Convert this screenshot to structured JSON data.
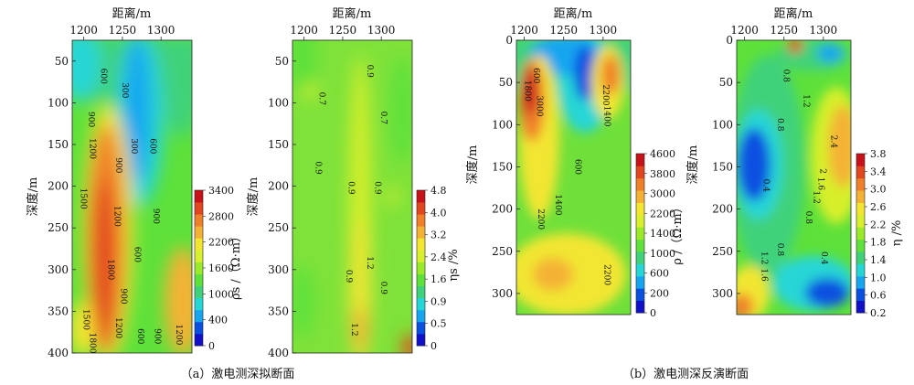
{
  "colormap": [
    "#1010c8",
    "#0a50e0",
    "#16a6f0",
    "#25d6d6",
    "#3fd27a",
    "#5ee13a",
    "#9bea2a",
    "#d7ef2c",
    "#f2e632",
    "#f4b234",
    "#f07f2a",
    "#e2461f",
    "#c8121a"
  ],
  "captions": {
    "a": "（a）激电测深拟断面",
    "b": "（b）激电测深反演断面"
  },
  "chart_data": [
    {
      "id": "a-rho",
      "type": "heatmap",
      "title": "",
      "xlabel": "距离/m",
      "ylabel": "深度/m",
      "x_ticks": [
        1200,
        1250,
        1300
      ],
      "xlim": [
        1185,
        1340
      ],
      "y_ticks": [
        50,
        100,
        150,
        200,
        250,
        300,
        350,
        400
      ],
      "ylim": [
        400,
        25
      ],
      "colorbar": {
        "label": "ρs /（Ω·m）",
        "ticks": [
          "0",
          "400",
          "1000",
          "1600",
          "2200",
          "2800",
          "3400"
        ],
        "range": [
          0,
          3400
        ]
      },
      "contour_labels": [
        {
          "text": "600",
          "x": 1222,
          "y": 68
        },
        {
          "text": "300",
          "x": 1250,
          "y": 85
        },
        {
          "text": "900",
          "x": 1206,
          "y": 120
        },
        {
          "text": "1200",
          "x": 1208,
          "y": 155
        },
        {
          "text": "300",
          "x": 1262,
          "y": 152
        },
        {
          "text": "600",
          "x": 1286,
          "y": 152
        },
        {
          "text": "900",
          "x": 1242,
          "y": 175
        },
        {
          "text": "1500",
          "x": 1196,
          "y": 215
        },
        {
          "text": "1200",
          "x": 1240,
          "y": 236
        },
        {
          "text": "900",
          "x": 1290,
          "y": 236
        },
        {
          "text": "600",
          "x": 1266,
          "y": 282
        },
        {
          "text": "1800",
          "x": 1232,
          "y": 300
        },
        {
          "text": "900",
          "x": 1248,
          "y": 332
        },
        {
          "text": "1500",
          "x": 1200,
          "y": 360
        },
        {
          "text": "1200",
          "x": 1242,
          "y": 370
        },
        {
          "text": "1800",
          "x": 1208,
          "y": 388
        },
        {
          "text": "600",
          "x": 1270,
          "y": 380
        },
        {
          "text": "900",
          "x": 1292,
          "y": 380
        },
        {
          "text": "1200",
          "x": 1320,
          "y": 378
        }
      ]
    },
    {
      "id": "a-eta",
      "type": "heatmap",
      "title": "",
      "xlabel": "距离/m",
      "ylabel": "深度/m",
      "x_ticks": [
        1200,
        1250,
        1300
      ],
      "xlim": [
        1185,
        1340
      ],
      "y_ticks": [
        50,
        100,
        150,
        200,
        250,
        300,
        350,
        400
      ],
      "ylim": [
        400,
        25
      ],
      "colorbar": {
        "label": "ηs /%",
        "ticks": [
          "0",
          "0.5",
          "0.9",
          "1.6",
          "2.4",
          "3.2",
          "4.0",
          "4.8"
        ],
        "range": [
          0,
          4.8
        ]
      },
      "contour_labels": [
        {
          "text": "0.9",
          "x": 1282,
          "y": 62
        },
        {
          "text": "0.7",
          "x": 1220,
          "y": 95
        },
        {
          "text": "0.7",
          "x": 1300,
          "y": 118
        },
        {
          "text": "0.9",
          "x": 1215,
          "y": 178
        },
        {
          "text": "0.9",
          "x": 1258,
          "y": 202
        },
        {
          "text": "0.9",
          "x": 1292,
          "y": 202
        },
        {
          "text": "1.2",
          "x": 1282,
          "y": 292
        },
        {
          "text": "0.9",
          "x": 1255,
          "y": 308
        },
        {
          "text": "0.9",
          "x": 1300,
          "y": 322
        },
        {
          "text": "1.2",
          "x": 1262,
          "y": 372
        }
      ]
    },
    {
      "id": "b-rho",
      "type": "heatmap",
      "title": "",
      "xlabel": "距离/m",
      "ylabel": "深度/m",
      "x_ticks": [
        1200,
        1250,
        1300
      ],
      "xlim": [
        1190,
        1335
      ],
      "y_ticks": [
        0,
        50,
        100,
        150,
        200,
        250,
        300
      ],
      "ylim": [
        325,
        0
      ],
      "colorbar": {
        "label": "ρ /（Ω·m）",
        "ticks": [
          "0",
          "200",
          "600",
          "1000",
          "1400",
          "2200",
          "3000",
          "3800",
          "4600"
        ],
        "range": [
          0,
          4600
        ]
      },
      "contour_labels": [
        {
          "text": "600",
          "x": 1212,
          "y": 42
        },
        {
          "text": "1800",
          "x": 1201,
          "y": 60
        },
        {
          "text": "3000",
          "x": 1216,
          "y": 78
        },
        {
          "text": "2200",
          "x": 1300,
          "y": 65
        },
        {
          "text": "1400",
          "x": 1302,
          "y": 90
        },
        {
          "text": "600",
          "x": 1265,
          "y": 150
        },
        {
          "text": "1400",
          "x": 1240,
          "y": 195
        },
        {
          "text": "2200",
          "x": 1218,
          "y": 212
        },
        {
          "text": "2200",
          "x": 1302,
          "y": 278
        }
      ]
    },
    {
      "id": "b-eta",
      "type": "heatmap",
      "title": "",
      "xlabel": "距离/m",
      "ylabel": "深度/m",
      "x_ticks": [
        1200,
        1250,
        1300
      ],
      "xlim": [
        1190,
        1335
      ],
      "y_ticks": [
        0,
        50,
        100,
        150,
        200,
        250,
        300
      ],
      "ylim": [
        325,
        0
      ],
      "colorbar": {
        "label": "η /%",
        "ticks": [
          "0.2",
          "0.6",
          "1.0",
          "1.4",
          "1.8",
          "2.2",
          "2.6",
          "3.0",
          "3.4",
          "3.8"
        ],
        "range": [
          0,
          3.8
        ]
      },
      "contour_labels": [
        {
          "text": "0.8",
          "x": 1250,
          "y": 42
        },
        {
          "text": "1.2",
          "x": 1275,
          "y": 72
        },
        {
          "text": "0.8",
          "x": 1242,
          "y": 100
        },
        {
          "text": "2.4",
          "x": 1310,
          "y": 120
        },
        {
          "text": "2",
          "x": 1296,
          "y": 155
        },
        {
          "text": "1.6",
          "x": 1294,
          "y": 170
        },
        {
          "text": "1.2",
          "x": 1288,
          "y": 186
        },
        {
          "text": "0.4",
          "x": 1224,
          "y": 172
        },
        {
          "text": "0.8",
          "x": 1278,
          "y": 210
        },
        {
          "text": "0.8",
          "x": 1242,
          "y": 248
        },
        {
          "text": "0.4",
          "x": 1298,
          "y": 258
        },
        {
          "text": "1.2",
          "x": 1222,
          "y": 258
        },
        {
          "text": "1.6",
          "x": 1222,
          "y": 278
        }
      ]
    }
  ]
}
